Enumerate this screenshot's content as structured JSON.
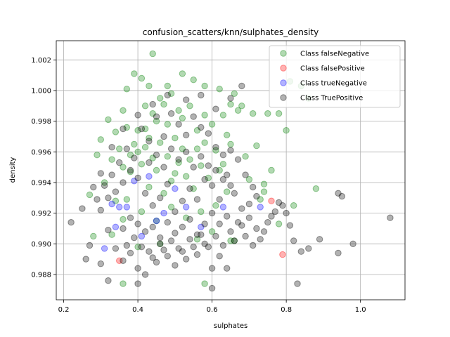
{
  "chart_data": {
    "type": "scatter",
    "title": "confusion_scatters/knn/sulphates_density",
    "xlabel": "sulphates",
    "ylabel": "density",
    "xlim": [
      0.18,
      1.12
    ],
    "ylim": [
      0.98635,
      1.00325
    ],
    "x_ticks": [
      "0.2",
      "0.4",
      "0.6",
      "0.8",
      "1.0"
    ],
    "y_ticks": [
      "0.988",
      "0.990",
      "0.992",
      "0.994",
      "0.996",
      "0.998",
      "1.000",
      "1.002"
    ],
    "grid": true,
    "legend_position": "top-right",
    "series": [
      {
        "name": "Class falseNegative",
        "color": "#008000",
        "points": [
          [
            0.44,
            1.0024
          ],
          [
            0.39,
            1.0011
          ],
          [
            0.41,
            1.0008
          ],
          [
            0.37,
            1.0001
          ],
          [
            0.43,
            1.0003
          ],
          [
            0.48,
            1.0003
          ],
          [
            0.52,
            1.0011
          ],
          [
            0.55,
            1.0007
          ],
          [
            0.58,
            1.0003
          ],
          [
            0.62,
            1.0001
          ],
          [
            0.66,
            0.9998
          ],
          [
            0.68,
            0.999
          ],
          [
            0.71,
            0.9985
          ],
          [
            0.75,
            0.9985
          ],
          [
            0.78,
            0.9985
          ],
          [
            0.81,
            1.0006
          ],
          [
            0.84,
            1.0003
          ],
          [
            0.86,
            0.9995
          ],
          [
            0.8,
            0.9974
          ],
          [
            0.72,
            0.9964
          ],
          [
            0.69,
            0.9957
          ],
          [
            0.65,
            0.9965
          ],
          [
            0.63,
            0.9952
          ],
          [
            0.7,
            0.9942
          ],
          [
            0.74,
            0.9934
          ],
          [
            0.76,
            0.9948
          ],
          [
            0.82,
            0.9925
          ],
          [
            0.88,
            0.9936
          ],
          [
            0.78,
            0.9913
          ],
          [
            0.65,
            0.9902
          ],
          [
            0.6,
            0.9908
          ],
          [
            0.56,
            0.9903
          ],
          [
            0.46,
            0.99
          ],
          [
            0.4,
            0.9898
          ],
          [
            0.33,
            0.9906
          ],
          [
            0.28,
            0.9905
          ],
          [
            0.27,
            0.9932
          ],
          [
            0.29,
            0.9958
          ],
          [
            0.3,
            0.9968
          ],
          [
            0.32,
            0.9981
          ],
          [
            0.34,
            0.9973
          ],
          [
            0.36,
            0.9987
          ],
          [
            0.35,
            0.9962
          ],
          [
            0.33,
            0.9955
          ],
          [
            0.31,
            0.994
          ],
          [
            0.34,
            0.9928
          ],
          [
            0.36,
            0.9916
          ],
          [
            0.38,
            0.9947
          ],
          [
            0.4,
            0.996
          ],
          [
            0.42,
            0.9975
          ],
          [
            0.44,
            0.9985
          ],
          [
            0.46,
            0.9995
          ],
          [
            0.48,
            0.9978
          ],
          [
            0.5,
            0.9969
          ],
          [
            0.52,
            0.9982
          ],
          [
            0.54,
            0.999
          ],
          [
            0.56,
            0.9974
          ],
          [
            0.58,
            0.9966
          ],
          [
            0.6,
            0.9978
          ],
          [
            0.61,
            0.9961
          ],
          [
            0.62,
            0.9948
          ],
          [
            0.59,
            0.9943
          ],
          [
            0.57,
            0.9951
          ],
          [
            0.55,
            0.9936
          ],
          [
            0.53,
            0.9944
          ],
          [
            0.51,
            0.9953
          ],
          [
            0.49,
            0.9941
          ],
          [
            0.47,
            0.9933
          ],
          [
            0.45,
            0.9948
          ],
          [
            0.43,
            0.9937
          ],
          [
            0.41,
            0.9952
          ],
          [
            0.39,
            0.9965
          ],
          [
            0.37,
            0.9976
          ],
          [
            0.38,
            0.9958
          ],
          [
            0.42,
            0.9963
          ],
          [
            0.44,
            0.9956
          ],
          [
            0.46,
            0.9966
          ],
          [
            0.48,
            0.9957
          ],
          [
            0.5,
            0.9946
          ],
          [
            0.52,
            0.9962
          ],
          [
            0.54,
            0.9955
          ],
          [
            0.56,
            0.9962
          ],
          [
            0.58,
            0.9984
          ],
          [
            0.64,
            0.9971
          ],
          [
            0.67,
            0.9987
          ],
          [
            0.64,
            0.9934
          ],
          [
            0.61,
            0.9925
          ],
          [
            0.57,
            0.9921
          ],
          [
            0.53,
            0.9917
          ],
          [
            0.49,
            0.9924
          ],
          [
            0.45,
            0.9915
          ],
          [
            0.41,
            0.9921
          ],
          [
            0.37,
            0.9929
          ],
          [
            0.42,
            0.999
          ],
          [
            0.45,
            0.998
          ],
          [
            0.47,
            0.9991
          ],
          [
            0.51,
            0.9987
          ],
          [
            0.49,
            0.9998
          ],
          [
            0.43,
            0.9969
          ],
          [
            0.4,
            0.9974
          ],
          [
            0.36,
            0.995
          ],
          [
            0.58,
            0.9874
          ],
          [
            0.36,
            0.9874
          ],
          [
            0.73,
            0.9929
          ],
          [
            0.74,
            0.9939
          ],
          [
            0.66,
            0.9902
          ],
          [
            0.63,
            0.9984
          ],
          [
            0.65,
            0.9991
          ]
        ]
      },
      {
        "name": "Class falsePositive",
        "color": "#ff0000",
        "points": [
          [
            0.76,
            0.9928
          ],
          [
            0.79,
            0.9893
          ],
          [
            0.35,
            0.9889
          ]
        ]
      },
      {
        "name": "Class trueNegative",
        "color": "#0000ff",
        "points": [
          [
            0.33,
            0.9926
          ],
          [
            0.35,
            0.9924
          ],
          [
            0.37,
            0.9924
          ],
          [
            0.39,
            0.9941
          ],
          [
            0.43,
            0.9944
          ],
          [
            0.45,
            0.9915
          ],
          [
            0.47,
            0.992
          ],
          [
            0.5,
            0.9936
          ],
          [
            0.53,
            0.9924
          ],
          [
            0.57,
            0.9911
          ],
          [
            0.63,
            0.9924
          ],
          [
            0.73,
            0.9924
          ],
          [
            0.31,
            0.9897
          ],
          [
            0.34,
            0.9911
          ],
          [
            0.41,
            0.9905
          ]
        ]
      },
      {
        "name": "Class TruePositive",
        "color": "#000000",
        "points": [
          [
            0.68,
            1.0003
          ],
          [
            0.65,
            0.9995
          ],
          [
            0.61,
            0.9988
          ],
          [
            0.57,
            0.9997
          ],
          [
            0.53,
            0.9994
          ],
          [
            0.48,
            0.9997
          ],
          [
            0.44,
            0.9991
          ],
          [
            0.4,
            0.9984
          ],
          [
            0.36,
            0.9975
          ],
          [
            0.33,
            0.9963
          ],
          [
            0.3,
            0.9946
          ],
          [
            0.28,
            0.9937
          ],
          [
            0.3,
            0.9922
          ],
          [
            0.32,
            0.9909
          ],
          [
            0.34,
            0.9897
          ],
          [
            0.36,
            0.9889
          ],
          [
            0.38,
            0.9894
          ],
          [
            0.4,
            0.9884
          ],
          [
            0.42,
            0.988
          ],
          [
            0.44,
            0.9891
          ],
          [
            0.46,
            0.99
          ],
          [
            0.48,
            0.9892
          ],
          [
            0.5,
            0.9886
          ],
          [
            0.52,
            0.9895
          ],
          [
            0.54,
            0.9903
          ],
          [
            0.56,
            0.9893
          ],
          [
            0.58,
            0.99
          ],
          [
            0.6,
            0.9884
          ],
          [
            0.62,
            0.9892
          ],
          [
            0.64,
            0.9884
          ],
          [
            0.66,
            0.9902
          ],
          [
            0.68,
            0.9912
          ],
          [
            0.7,
            0.9917
          ],
          [
            0.72,
            0.991
          ],
          [
            0.74,
            0.9908
          ],
          [
            0.76,
            0.9918
          ],
          [
            0.78,
            0.9927
          ],
          [
            0.8,
            0.992
          ],
          [
            0.82,
            0.9902
          ],
          [
            0.84,
            0.9895
          ],
          [
            0.86,
            0.9897
          ],
          [
            0.89,
            0.9903
          ],
          [
            0.94,
            0.9933
          ],
          [
            0.95,
            0.9931
          ],
          [
            1.08,
            0.9917
          ],
          [
            0.98,
            0.99
          ],
          [
            0.94,
            0.9894
          ],
          [
            0.83,
            0.9874
          ],
          [
            0.6,
            0.9871
          ],
          [
            0.4,
            0.9874
          ],
          [
            0.32,
            0.9876
          ],
          [
            0.22,
            0.9914
          ],
          [
            0.25,
            0.9923
          ],
          [
            0.27,
            0.9899
          ],
          [
            0.26,
            0.989
          ],
          [
            0.3,
            0.9887
          ],
          [
            0.32,
            0.993
          ],
          [
            0.34,
            0.9934
          ],
          [
            0.36,
            0.994
          ],
          [
            0.38,
            0.9948
          ],
          [
            0.4,
            0.9943
          ],
          [
            0.42,
            0.9933
          ],
          [
            0.44,
            0.9925
          ],
          [
            0.46,
            0.993
          ],
          [
            0.48,
            0.9939
          ],
          [
            0.5,
            0.9921
          ],
          [
            0.52,
            0.9928
          ],
          [
            0.54,
            0.9936
          ],
          [
            0.56,
            0.9929
          ],
          [
            0.58,
            0.9942
          ],
          [
            0.6,
            0.9938
          ],
          [
            0.62,
            0.9929
          ],
          [
            0.64,
            0.9945
          ],
          [
            0.66,
            0.9933
          ],
          [
            0.68,
            0.9923
          ],
          [
            0.7,
            0.9926
          ],
          [
            0.72,
            0.9931
          ],
          [
            0.36,
            0.991
          ],
          [
            0.38,
            0.9917
          ],
          [
            0.4,
            0.9913
          ],
          [
            0.42,
            0.9908
          ],
          [
            0.44,
            0.9911
          ],
          [
            0.46,
            0.9904
          ],
          [
            0.48,
            0.9914
          ],
          [
            0.5,
            0.9907
          ],
          [
            0.52,
            0.9911
          ],
          [
            0.54,
            0.9916
          ],
          [
            0.56,
            0.9906
          ],
          [
            0.58,
            0.9913
          ],
          [
            0.6,
            0.992
          ],
          [
            0.62,
            0.9913
          ],
          [
            0.64,
            0.9918
          ],
          [
            0.41,
            0.9975
          ],
          [
            0.43,
            0.9967
          ],
          [
            0.45,
            0.9983
          ],
          [
            0.47,
            0.997
          ],
          [
            0.49,
            0.9985
          ],
          [
            0.51,
            0.9978
          ],
          [
            0.53,
            0.9971
          ],
          [
            0.55,
            0.9983
          ],
          [
            0.57,
            0.9976
          ],
          [
            0.59,
            0.9972
          ],
          [
            0.61,
            0.9963
          ],
          [
            0.63,
            0.9958
          ],
          [
            0.65,
            0.9961
          ],
          [
            0.67,
            0.9955
          ],
          [
            0.69,
            0.9945
          ],
          [
            0.71,
            0.9937
          ],
          [
            0.39,
            0.9956
          ],
          [
            0.37,
            0.9962
          ],
          [
            0.35,
            0.9953
          ],
          [
            0.33,
            0.9945
          ],
          [
            0.31,
            0.9938
          ],
          [
            0.29,
            0.9929
          ],
          [
            0.43,
            0.9953
          ],
          [
            0.45,
            0.9958
          ],
          [
            0.47,
            0.995
          ],
          [
            0.49,
            0.9962
          ],
          [
            0.51,
            0.9955
          ],
          [
            0.53,
            0.996
          ],
          [
            0.55,
            0.995
          ],
          [
            0.57,
            0.9957
          ],
          [
            0.59,
            0.9951
          ],
          [
            0.61,
            0.9948
          ],
          [
            0.63,
            0.9942
          ],
          [
            0.65,
            0.9938
          ],
          [
            0.37,
            0.9899
          ],
          [
            0.39,
            0.9904
          ],
          [
            0.41,
            0.9898
          ],
          [
            0.43,
            0.9895
          ],
          [
            0.45,
            0.9888
          ],
          [
            0.47,
            0.9896
          ],
          [
            0.49,
            0.9902
          ],
          [
            0.51,
            0.9897
          ],
          [
            0.53,
            0.989
          ],
          [
            0.55,
            0.9898
          ],
          [
            0.57,
            0.9906
          ],
          [
            0.59,
            0.9898
          ],
          [
            0.61,
            0.9905
          ],
          [
            0.63,
            0.9899
          ],
          [
            0.65,
            0.9908
          ],
          [
            0.67,
            0.9914
          ],
          [
            0.69,
            0.9905
          ],
          [
            0.71,
            0.9899
          ],
          [
            0.73,
            0.9903
          ],
          [
            0.75,
            0.9914
          ],
          [
            0.77,
            0.9921
          ],
          [
            0.79,
            0.9925
          ],
          [
            0.81,
            0.9912
          ]
        ]
      }
    ]
  }
}
